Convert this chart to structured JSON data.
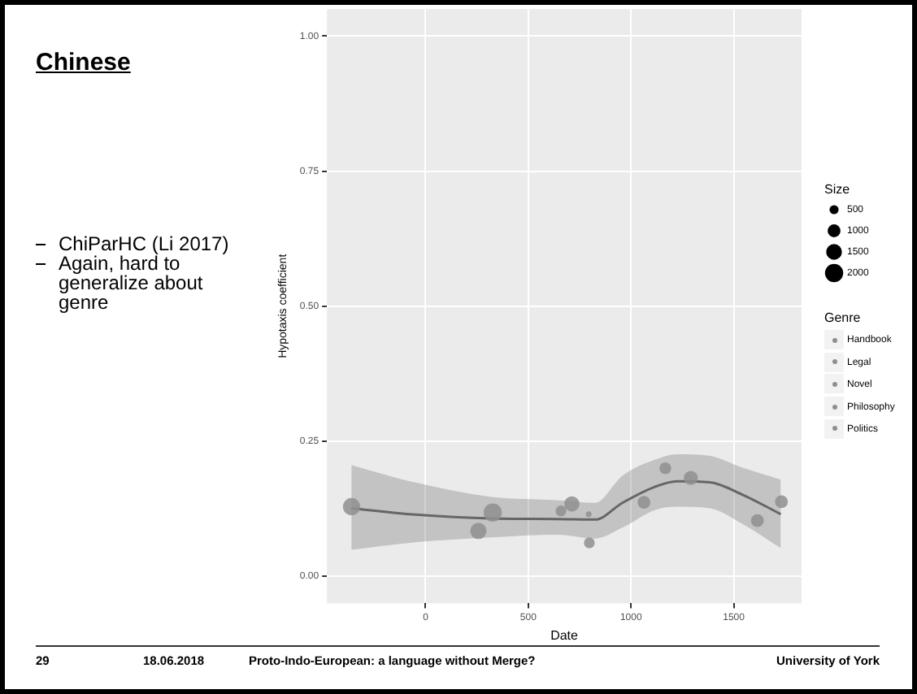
{
  "chart_data": {
    "type": "bubble",
    "title": "Chinese",
    "xlabel": "Date",
    "ylabel": "Hypotaxis coefficient",
    "legend_title": "Size",
    "grid": true,
    "xlim": [
      -480,
      1830
    ],
    "xticks": [
      0,
      500,
      1000,
      1500
    ],
    "ylim": [
      -0.05,
      1.05
    ],
    "yticks": [
      {
        "value": 0,
        "label": "0.00"
      },
      {
        "value": 0.25,
        "label": "0.25"
      },
      {
        "value": 0.5,
        "label": "0.50"
      },
      {
        "value": 0.75,
        "label": "0.75"
      },
      {
        "value": 1,
        "label": "1.00"
      }
    ],
    "size_legend": [
      500,
      1000,
      1500,
      2000
    ],
    "series": [
      {
        "color": "#8f8f8f",
        "x": [
          -360,
          257,
          327,
          659,
          712,
          794,
          797,
          1063,
          1167,
          1291,
          1615,
          1732
        ],
        "values": [
          0.129,
          0.084,
          0.118,
          0.121,
          0.134,
          0.115,
          0.062,
          0.137,
          0.2,
          0.182,
          0.103,
          0.138
        ],
        "sizes": [
          1800,
          1600,
          2000,
          700,
          1400,
          200,
          700,
          1000,
          850,
          1200,
          1000,
          1000
        ]
      },
      {
        "type": "line",
        "color": "#666666",
        "x": [
          -361,
          -77,
          321,
          640,
          826,
          958,
          1118,
          1224,
          1384,
          1543,
          1729
        ],
        "values": [
          0.126,
          0.115,
          0.107,
          0.106,
          0.105,
          0.136,
          0.166,
          0.176,
          0.174,
          0.151,
          0.115
        ],
        "lower": [
          0.049,
          0.062,
          0.072,
          0.077,
          0.07,
          0.09,
          0.123,
          0.129,
          0.126,
          0.097,
          0.052
        ],
        "upper": [
          0.206,
          0.176,
          0.147,
          0.141,
          0.136,
          0.186,
          0.216,
          0.226,
          0.223,
          0.201,
          0.179
        ]
      }
    ],
    "annotations": [
      "ChiParHC (Li 2017)",
      "Again, hard to generalize about genre",
      "Genre",
      "Handbook",
      "Legal",
      "Novel",
      "Philosophy",
      "Politics",
      "29",
      "18.06.2018",
      "Proto-Indo-European: a language without Merge?",
      "University of York"
    ]
  }
}
